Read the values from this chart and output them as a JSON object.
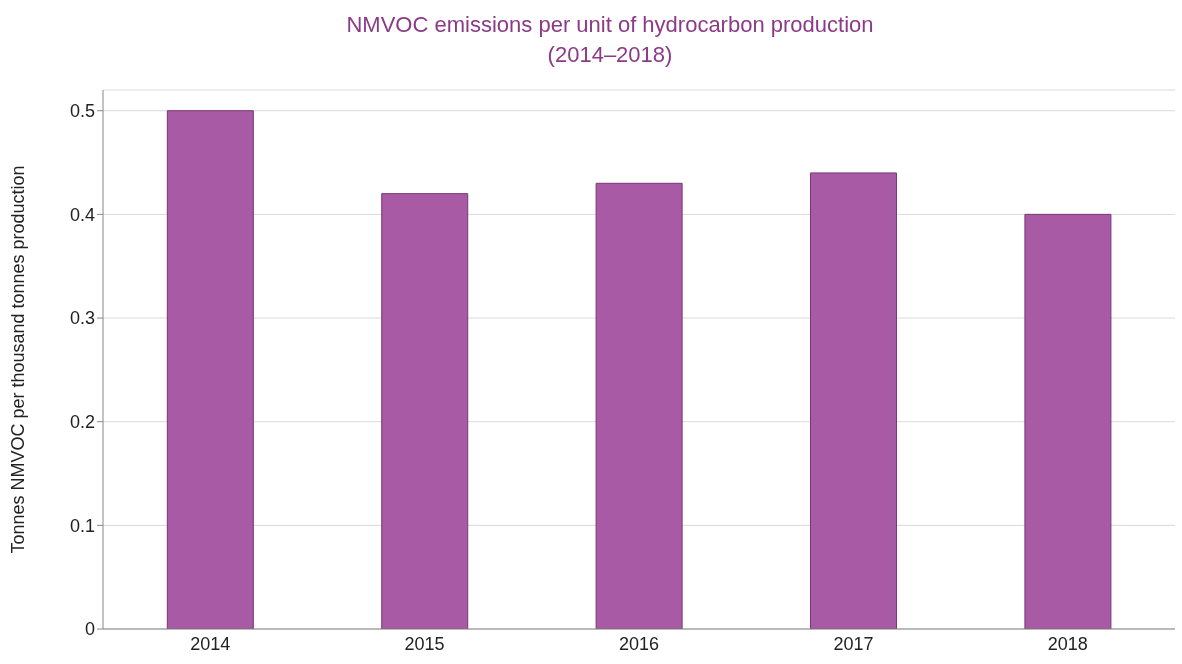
{
  "chart_data": {
    "type": "bar",
    "title": "NMVOC emissions per unit of hydrocarbon production (2014–2018)",
    "ylabel": "Tonnes NMVOC per thousand tonnes production",
    "categories": [
      "2014",
      "2015",
      "2016",
      "2017",
      "2018"
    ],
    "values": [
      0.5,
      0.42,
      0.43,
      0.44,
      0.4
    ],
    "color": "#a85aa5",
    "ylim": [
      0,
      0.52
    ],
    "yticks": [
      0,
      0.1,
      0.2,
      0.3,
      0.4,
      0.5
    ],
    "grid": "y"
  }
}
